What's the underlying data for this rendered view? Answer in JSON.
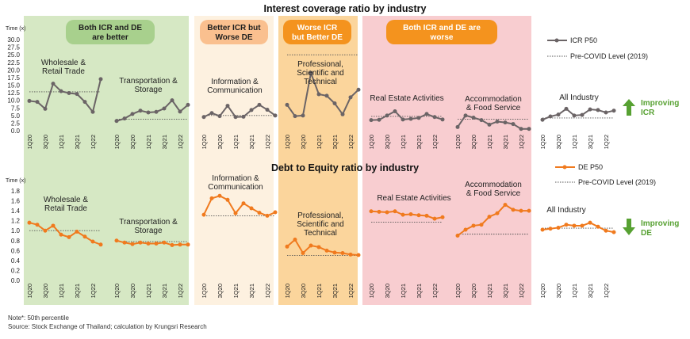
{
  "colors": {
    "icr_line": "#6b6466",
    "de_line": "#f07a1e",
    "green_bg": "#d6e8c4",
    "light_orange_bg": "#fdf1e0",
    "orange_bg": "#fbd59c",
    "pink_bg": "#f8cdd0",
    "green_header": "#a8d08d",
    "orange_header": "#fac08f",
    "dark_orange_header": "#f4931e",
    "green_arrow": "#57a132"
  },
  "title_icr": "Interest coverage ratio by industry",
  "title_de": "Debt to Equity ratio by industry",
  "headers": [
    "Both ICR and DE are better",
    "Better ICR but Worse DE",
    "Worse ICR but Better DE",
    "Both ICR and DE are worse"
  ],
  "icr_ylabel": "Time (x)",
  "de_ylabel": "Time (x)",
  "legend_icr": "ICR P50",
  "legend_de": "DE P50",
  "legend_precovid": "Pre-COVID Level (2019)",
  "improving_icr": "Improving ICR",
  "improving_de": "Improving DE",
  "note": "Note*: 50th percentile",
  "source": "Source: Stock Exchange of Thailand; calculation by Krungsri Research",
  "chart_data": [
    {
      "type": "line",
      "title": "Interest coverage ratio by industry",
      "ylabel": "Time (x)",
      "ylim": [
        0,
        30
      ],
      "yticks": [
        "0.0",
        "2.5",
        "5.0",
        "7.5",
        "10.0",
        "12.5",
        "15.0",
        "17.5",
        "20.0",
        "22.5",
        "25.0",
        "27.5",
        "30.0"
      ],
      "x_tick_labels": [
        "1Q20",
        "3Q20",
        "1Q21",
        "3Q21",
        "1Q22"
      ],
      "series": [
        {
          "name": "Wholesale & Retail Trade",
          "values": [
            9.8,
            9.5,
            7.2,
            15.5,
            13.0,
            12.4,
            12.1,
            9.5,
            6.2,
            17.0
          ],
          "pre_covid": 12.8
        },
        {
          "name": "Transportation & Storage",
          "values": [
            3.2,
            4.0,
            5.5,
            6.6,
            6.0,
            6.2,
            7.3,
            10.0,
            6.3,
            8.5
          ],
          "pre_covid": 3.8
        },
        {
          "name": "Information & Communication",
          "values": [
            4.5,
            5.8,
            4.8,
            8.2,
            4.5,
            4.6,
            6.8,
            8.5,
            6.9,
            5.0
          ],
          "pre_covid": 5.0
        },
        {
          "name": "Professional, Scientific and Technical",
          "values": [
            8.5,
            4.8,
            5.0,
            19.0,
            12.0,
            11.5,
            9.0,
            5.4,
            11.0,
            13.5
          ],
          "pre_covid": 25.0
        },
        {
          "name": "Real Estate Activities",
          "values": [
            3.5,
            3.6,
            5.0,
            6.4,
            3.7,
            3.9,
            4.2,
            5.5,
            4.5,
            3.7
          ],
          "pre_covid": 4.7
        },
        {
          "name": "Accommodation & Food Service",
          "values": [
            1.2,
            5.0,
            4.3,
            3.5,
            2.0,
            3.0,
            2.7,
            2.2,
            0.6,
            0.6
          ],
          "pre_covid": 3.8
        },
        {
          "name": "All Industry",
          "values": [
            3.6,
            4.7,
            5.3,
            7.2,
            5.0,
            5.2,
            7.0,
            6.8,
            6.0,
            6.6
          ],
          "pre_covid": 4.2
        }
      ]
    },
    {
      "type": "line",
      "title": "Debt to Equity ratio by industry",
      "ylabel": "Time (x)",
      "ylim": [
        0,
        1.8
      ],
      "yticks": [
        "0.0",
        "0.2",
        "0.4",
        "0.6",
        "0.8",
        "1.0",
        "1.2",
        "1.4",
        "1.6",
        "1.8"
      ],
      "x_tick_labels": [
        "1Q20",
        "3Q20",
        "1Q21",
        "3Q21",
        "1Q22"
      ],
      "series": [
        {
          "name": "Wholesale & Retail Trade",
          "values": [
            1.16,
            1.12,
            1.0,
            1.1,
            0.92,
            0.87,
            0.98,
            0.88,
            0.78,
            0.72
          ],
          "pre_covid": 1.0
        },
        {
          "name": "Transportation & Storage",
          "values": [
            0.8,
            0.76,
            0.73,
            0.76,
            0.74,
            0.74,
            0.76,
            0.71,
            0.72,
            0.72
          ],
          "pre_covid": 0.78
        },
        {
          "name": "Information & Communication",
          "values": [
            1.32,
            1.65,
            1.7,
            1.62,
            1.35,
            1.55,
            1.45,
            1.36,
            1.3,
            1.37
          ],
          "pre_covid": 1.3
        },
        {
          "name": "Professional, Scientific and Technical",
          "values": [
            0.68,
            0.82,
            0.55,
            0.7,
            0.67,
            0.6,
            0.56,
            0.55,
            0.52,
            0.51
          ],
          "pre_covid": 0.5
        },
        {
          "name": "Real Estate Activities",
          "values": [
            1.39,
            1.38,
            1.37,
            1.39,
            1.32,
            1.33,
            1.31,
            1.3,
            1.24,
            1.27
          ],
          "pre_covid": 1.17
        },
        {
          "name": "Accommodation & Food Service",
          "values": [
            0.9,
            1.02,
            1.1,
            1.12,
            1.28,
            1.35,
            1.52,
            1.42,
            1.4,
            1.4
          ],
          "pre_covid": 0.93
        },
        {
          "name": "All Industry",
          "values": [
            1.02,
            1.04,
            1.06,
            1.12,
            1.1,
            1.1,
            1.16,
            1.08,
            1.0,
            0.97
          ],
          "pre_covid": 1.05
        }
      ]
    }
  ],
  "panel_labels_icr": [
    [
      "Wholesale &",
      "Retail Trade"
    ],
    [
      "Transportation &",
      "Storage"
    ],
    [
      "Information &",
      "Communication"
    ],
    [
      "Professional,",
      "Scientific and",
      "Technical"
    ],
    [
      "Real Estate Activities"
    ],
    [
      "Accommodation",
      "& Food Service"
    ],
    [
      "All Industry"
    ]
  ],
  "panel_labels_de": [
    [
      "Wholesale &",
      "Retail Trade"
    ],
    [
      "Transportation &",
      "Storage"
    ],
    [
      "Information &",
      "Communication"
    ],
    [
      "Professional,",
      "Scientific and",
      "Technical"
    ],
    [
      "Real Estate Activities"
    ],
    [
      "Accommodation",
      "& Food Service"
    ],
    [
      "All Industry"
    ]
  ]
}
